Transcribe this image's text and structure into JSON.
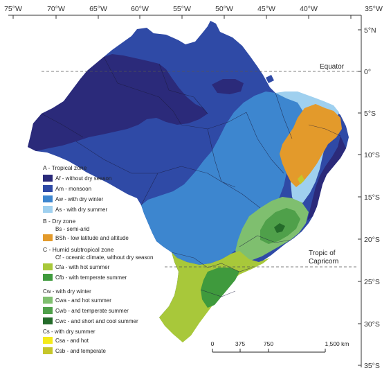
{
  "axes": {
    "longitude_labels": [
      "75°W",
      "70°W",
      "65°W",
      "60°W",
      "55°W",
      "50°W",
      "45°W",
      "40°W",
      "35°W"
    ],
    "latitude_labels": [
      "5°N",
      "0°",
      "5°S",
      "10°S",
      "15°S",
      "20°S",
      "25°S",
      "30°S",
      "35°S"
    ]
  },
  "annotations": {
    "equator": "Equator",
    "tropic_line1": "Tropic of",
    "tropic_line2": "Capricorn"
  },
  "scale_bar": {
    "labels": [
      "0",
      "375",
      "750",
      "1,500 km"
    ]
  },
  "legend": {
    "groups": [
      {
        "heading": "A - Tropical zone",
        "items": [
          {
            "code": "Af",
            "label": "Af - without dry season",
            "color": "#2b2a7a"
          },
          {
            "code": "Am",
            "label": "Am - monsoon",
            "color": "#2f4aa6"
          },
          {
            "code": "Aw",
            "label": "Aw - with dry winter",
            "color": "#3d86cf"
          },
          {
            "code": "As",
            "label": "As - with dry summer",
            "color": "#9fd0ef"
          }
        ]
      },
      {
        "heading": "B - Dry zone",
        "subheading": "Bs - semi-arid",
        "items": [
          {
            "code": "BSh",
            "label": "BSh - low latitude and altitude",
            "color": "#e39a2b"
          }
        ]
      },
      {
        "heading": "C - Humid subtropical zone",
        "subheading": "Cf - oceanic climate, without dry season",
        "items": [
          {
            "code": "Cfa",
            "label": "Cfa - with hot summer",
            "color": "#a8c83a"
          },
          {
            "code": "Cfb",
            "label": "Cfb - with temperate summer",
            "color": "#3f9a3d"
          }
        ]
      },
      {
        "heading": "Cw - with dry winter",
        "items": [
          {
            "code": "Cwa",
            "label": "Cwa - and hot summer",
            "color": "#7fbf6f"
          },
          {
            "code": "Cwb",
            "label": "Cwb - and temperate summer",
            "color": "#4fa04a"
          },
          {
            "code": "Cwc",
            "label": "Cwc - and short and cool summer",
            "color": "#246b2a"
          }
        ]
      },
      {
        "heading": "Cs - with dry summer",
        "items": [
          {
            "code": "Csa",
            "label": "Csa - and hot",
            "color": "#f4ea1a"
          },
          {
            "code": "Csb",
            "label": "Csb - and temperate",
            "color": "#c6c62a"
          }
        ]
      }
    ]
  }
}
